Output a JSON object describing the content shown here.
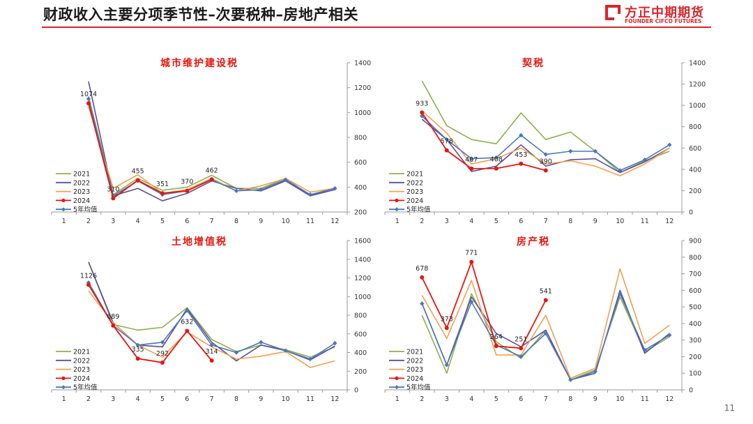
{
  "header": {
    "title": "财政收入主要分项季节性–次要税种–房地产相关",
    "brand_cn": "方正中期期货",
    "brand_en": "FOUNDER CIFCO FUTURES",
    "brand_color": "#d7262b"
  },
  "page_number": "11",
  "chart_data": [
    {
      "type": "line",
      "title": "城市维护建设税",
      "x": [
        "1",
        "2",
        "3",
        "4",
        "5",
        "6",
        "7",
        "8",
        "9",
        "10",
        "11",
        "12"
      ],
      "ylim": [
        200,
        1400
      ],
      "yticks": [
        200,
        400,
        600,
        800,
        1000,
        1200,
        1400
      ],
      "legend_position": "bottom-left",
      "series": [
        {
          "name": "2021",
          "color": "#8fae4f",
          "values": [
            null,
            1130,
            340,
            470,
            375,
            400,
            495,
            390,
            390,
            470,
            330,
            395
          ]
        },
        {
          "name": "2022",
          "color": "#5b4d9a",
          "values": [
            null,
            1250,
            330,
            390,
            290,
            350,
            450,
            390,
            370,
            450,
            330,
            380
          ]
        },
        {
          "name": "2023",
          "color": "#f0a050",
          "values": [
            null,
            1050,
            390,
            500,
            350,
            380,
            470,
            370,
            410,
            470,
            360,
            390
          ]
        },
        {
          "name": "2024",
          "color": "#e8150f",
          "values": [
            null,
            1074,
            310,
            455,
            351,
            370,
            462,
            null,
            null,
            null,
            null,
            null
          ],
          "labels": [
            "",
            "1074",
            "310",
            "455",
            "351",
            "370",
            "462",
            "",
            "",
            "",
            "",
            ""
          ]
        },
        {
          "name": "5年均值",
          "color": "#4a78b8",
          "values": [
            null,
            1110,
            330,
            450,
            340,
            370,
            460,
            370,
            380,
            460,
            340,
            390
          ]
        }
      ]
    },
    {
      "type": "line",
      "title": "契税",
      "x": [
        "1",
        "2",
        "3",
        "4",
        "5",
        "6",
        "7",
        "8",
        "9",
        "10",
        "11",
        "12"
      ],
      "ylim": [
        0,
        1400
      ],
      "yticks": [
        0,
        200,
        400,
        600,
        800,
        1000,
        1200,
        1400
      ],
      "legend_position": "bottom-left",
      "series": [
        {
          "name": "2021",
          "color": "#8fae4f",
          "values": [
            null,
            1230,
            810,
            680,
            640,
            930,
            680,
            750,
            570,
            370,
            480,
            570
          ]
        },
        {
          "name": "2022",
          "color": "#5b4d9a",
          "values": [
            null,
            870,
            680,
            380,
            430,
            630,
            430,
            490,
            500,
            370,
            470,
            600
          ]
        },
        {
          "name": "2023",
          "color": "#f0a050",
          "values": [
            null,
            950,
            740,
            450,
            500,
            600,
            450,
            480,
            430,
            340,
            450,
            600
          ]
        },
        {
          "name": "2024",
          "color": "#e8150f",
          "values": [
            null,
            933,
            578,
            407,
            408,
            453,
            390,
            null,
            null,
            null,
            null,
            null
          ],
          "labels": [
            "",
            "933",
            "578",
            "407",
            "408",
            "453",
            "390",
            "",
            "",
            "",
            "",
            ""
          ]
        },
        {
          "name": "5年均值",
          "color": "#4a78b8",
          "values": [
            null,
            900,
            680,
            500,
            510,
            720,
            540,
            570,
            570,
            390,
            490,
            630
          ]
        }
      ]
    },
    {
      "type": "line",
      "title": "土地增值税",
      "x": [
        "1",
        "2",
        "3",
        "4",
        "5",
        "6",
        "7",
        "8",
        "9",
        "10",
        "11",
        "12"
      ],
      "ylim": [
        0,
        1600
      ],
      "yticks": [
        0,
        200,
        400,
        600,
        800,
        1000,
        1200,
        1400,
        1600
      ],
      "legend_position": "bottom-left",
      "series": [
        {
          "name": "2021",
          "color": "#8fae4f",
          "values": [
            null,
            1370,
            700,
            640,
            670,
            880,
            540,
            410,
            480,
            430,
            350,
            460
          ]
        },
        {
          "name": "2022",
          "color": "#5b4d9a",
          "values": [
            null,
            1370,
            720,
            480,
            460,
            870,
            510,
            310,
            480,
            420,
            320,
            470
          ]
        },
        {
          "name": "2023",
          "color": "#f0a050",
          "values": [
            null,
            1060,
            720,
            480,
            350,
            620,
            460,
            330,
            360,
            410,
            240,
            310
          ]
        },
        {
          "name": "2024",
          "color": "#e8150f",
          "values": [
            null,
            1126,
            689,
            335,
            292,
            632,
            314,
            null,
            null,
            null,
            null,
            null
          ],
          "labels": [
            "",
            "1126",
            "689",
            "335",
            "292",
            "632",
            "314",
            "",
            "",
            "",
            "",
            ""
          ]
        },
        {
          "name": "5年均值",
          "color": "#4a78b8",
          "values": [
            null,
            1150,
            690,
            480,
            510,
            850,
            480,
            400,
            510,
            420,
            330,
            500
          ]
        }
      ]
    },
    {
      "type": "line",
      "title": "房产税",
      "x": [
        "1",
        "2",
        "3",
        "4",
        "5",
        "6",
        "7",
        "8",
        "9",
        "10",
        "11",
        "12"
      ],
      "ylim": [
        0,
        900
      ],
      "yticks": [
        0,
        100,
        200,
        300,
        400,
        500,
        600,
        700,
        800,
        900
      ],
      "legend_position": "bottom-left",
      "series": [
        {
          "name": "2021",
          "color": "#8fae4f",
          "values": [
            null,
            450,
            100,
            580,
            290,
            190,
            360,
            60,
            120,
            560,
            230,
            320
          ]
        },
        {
          "name": "2022",
          "color": "#5b4d9a",
          "values": [
            null,
            520,
            150,
            560,
            340,
            260,
            360,
            60,
            100,
            600,
            220,
            340
          ]
        },
        {
          "name": "2023",
          "color": "#f0a050",
          "values": [
            null,
            570,
            310,
            660,
            210,
            210,
            450,
            70,
            130,
            730,
            280,
            390
          ]
        },
        {
          "name": "2024",
          "color": "#e8150f",
          "values": [
            null,
            678,
            373,
            771,
            264,
            251,
            541,
            null,
            null,
            null,
            null,
            null
          ],
          "labels": [
            "",
            "678",
            "373",
            "771",
            "264",
            "251",
            "541",
            "",
            "",
            "",
            "",
            ""
          ]
        },
        {
          "name": "5年均值",
          "color": "#4a78b8",
          "values": [
            null,
            520,
            150,
            530,
            270,
            200,
            340,
            60,
            110,
            580,
            240,
            330
          ]
        }
      ]
    }
  ]
}
